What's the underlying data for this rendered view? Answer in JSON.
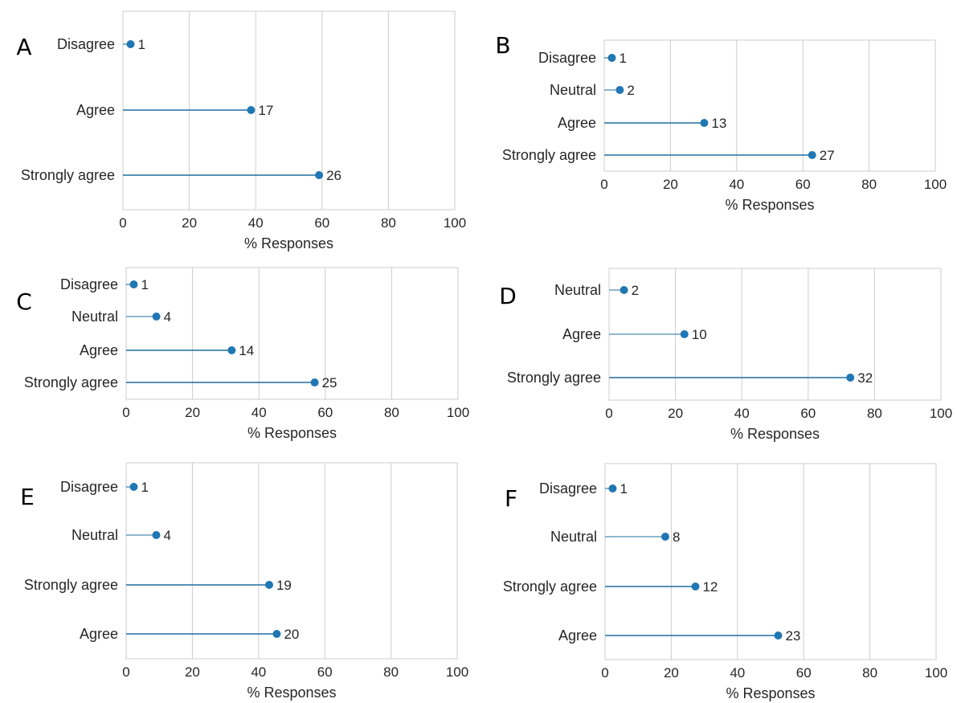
{
  "figure": {
    "colors": {
      "stem": "#1f6f9f",
      "marker": "#1f77b4",
      "grid": "#cccccc",
      "frame": "#cccccc"
    }
  },
  "chart_data": [
    {
      "type": "lollipop",
      "panel": "A",
      "categories": [
        "Disagree",
        "Agree",
        "Strongly agree"
      ],
      "values": [
        2.3,
        38.6,
        59.1
      ],
      "labels": [
        "1",
        "17",
        "26"
      ],
      "xlabel": "% Responses",
      "xlim": [
        0,
        100
      ],
      "xticks": [
        "0",
        "20",
        "40",
        "60",
        "80",
        "100"
      ],
      "grid": "vertical"
    },
    {
      "type": "lollipop",
      "panel": "B",
      "categories": [
        "Disagree",
        "Neutral",
        "Agree",
        "Strongly agree"
      ],
      "values": [
        2.3,
        4.7,
        30.2,
        62.8
      ],
      "labels": [
        "1",
        "2",
        "13",
        "27"
      ],
      "xlabel": "% Responses",
      "xlim": [
        0,
        100
      ],
      "xticks": [
        "0",
        "20",
        "40",
        "60",
        "80",
        "100"
      ],
      "grid": "vertical"
    },
    {
      "type": "lollipop",
      "panel": "C",
      "categories": [
        "Disagree",
        "Neutral",
        "Agree",
        "Strongly agree"
      ],
      "values": [
        2.3,
        9.1,
        31.8,
        56.8
      ],
      "labels": [
        "1",
        "4",
        "14",
        "25"
      ],
      "xlabel": "% Responses",
      "xlim": [
        0,
        100
      ],
      "xticks": [
        "0",
        "20",
        "40",
        "60",
        "80",
        "100"
      ],
      "grid": "vertical"
    },
    {
      "type": "lollipop",
      "panel": "D",
      "categories": [
        "Neutral",
        "Agree",
        "Strongly agree"
      ],
      "values": [
        4.5,
        22.7,
        72.7
      ],
      "labels": [
        "2",
        "10",
        "32"
      ],
      "xlabel": "% Responses",
      "xlim": [
        0,
        100
      ],
      "xticks": [
        "0",
        "20",
        "40",
        "60",
        "80",
        "100"
      ],
      "grid": "vertical"
    },
    {
      "type": "lollipop",
      "panel": "E",
      "categories": [
        "Disagree",
        "Neutral",
        "Strongly agree",
        "Agree"
      ],
      "values": [
        2.3,
        9.1,
        43.2,
        45.5
      ],
      "labels": [
        "1",
        "4",
        "19",
        "20"
      ],
      "xlabel": "% Responses",
      "xlim": [
        0,
        100
      ],
      "xticks": [
        "0",
        "20",
        "40",
        "60",
        "80",
        "100"
      ],
      "grid": "vertical"
    },
    {
      "type": "lollipop",
      "panel": "F",
      "categories": [
        "Disagree",
        "Neutral",
        "Strongly agree",
        "Agree"
      ],
      "values": [
        2.3,
        18.2,
        27.3,
        52.3
      ],
      "labels": [
        "1",
        "8",
        "12",
        "23"
      ],
      "xlabel": "% Responses",
      "xlim": [
        0,
        100
      ],
      "xticks": [
        "0",
        "20",
        "40",
        "60",
        "80",
        "100"
      ],
      "grid": "vertical"
    }
  ]
}
